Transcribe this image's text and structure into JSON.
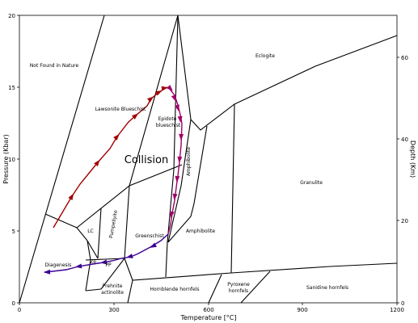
{
  "axes": {
    "x_title": "Temperature [°C]",
    "y_left_title": "Pressure (Kbar)",
    "y_right_title": "Depth (Km)",
    "x_ticks": [
      "0",
      "300",
      "600",
      "900",
      "1200"
    ],
    "y_left_ticks": [
      "0",
      "5",
      "10",
      "15",
      "20"
    ],
    "y_right_ticks": [
      "0",
      "20",
      "40",
      "60"
    ]
  },
  "labels": {
    "not_found": "Not Found in Nature",
    "eclogite": "Eclogite",
    "lawsonite_blueschist": "Lawsonite Blueschist",
    "epidote_line1": "Epidote",
    "epidote_line2": "blueschist",
    "collision": "Collision",
    "amphibolite_vertical": "Amphibolite",
    "granulite": "Granulite",
    "lc": "LC",
    "pumpellyite": "Pumpellyite",
    "greenschist": "Greenschist",
    "amphibolite": "Amphibolite",
    "diagenesis": "Diagenesis",
    "ze": "Ze",
    "pp": "PP",
    "prehnite_line1": "Prehnite",
    "prehnite_line2": "actinolite",
    "hornblende_hornfels": "Hornblende hornfels",
    "pyroxene_line1": "Pyroxene",
    "pyroxene_line2": "hornfels",
    "sanidine_hornfels": "Sanidine hornfels"
  },
  "colors": {
    "prograde_path": "#a00000",
    "peak_path": "#a0006a",
    "retrograde_path": "#3a0090"
  }
}
